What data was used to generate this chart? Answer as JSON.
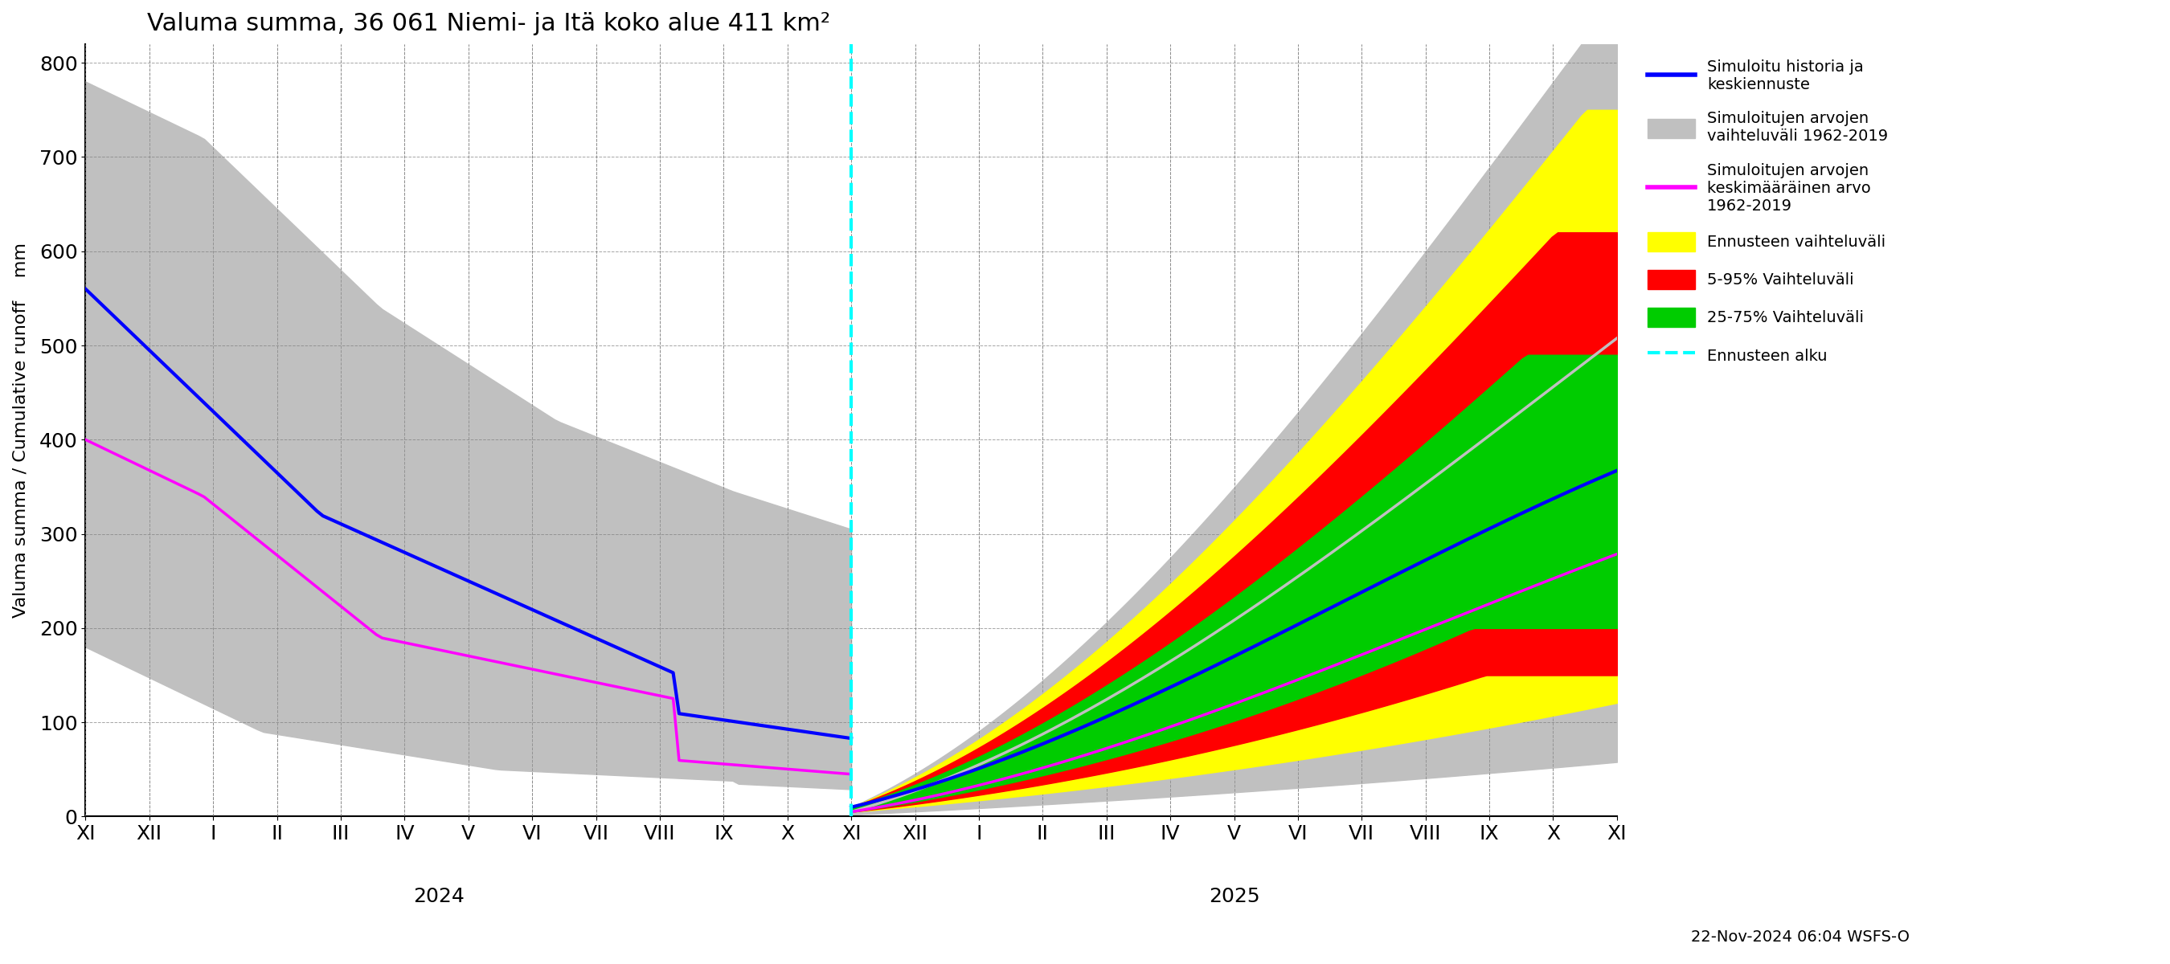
{
  "title": "Valuma summa, 36 061 Niemi- ja Itä koko alue 411 km²",
  "ylabel": "Valuma summa / Cumulative runoff    mm",
  "ylim": [
    0,
    820
  ],
  "yticks": [
    0,
    100,
    200,
    300,
    400,
    500,
    600,
    700,
    800
  ],
  "footnote": "22-Nov-2024 06:04 WSFS-O",
  "vline_color": "#00ffff",
  "history_color": "#0000ff",
  "hist_band_color": "#c0c0c0",
  "clim_mean_color": "#ff00ff",
  "forecast_band_color": "#ffff00",
  "p595_color": "#ff0000",
  "p2575_color": "#00cc00",
  "legend_entries": [
    "Simuloitu historia ja\nkeskiennuste",
    "Simuloitujen arvojen\nvaihteluväli 1962-2019",
    "Simuloitujen arvojen\nkeskimääräinen arvo\n1962-2019",
    "Ennusteen vaihteluväli",
    "5-95% Vaihteluväli",
    "25-75% Vaihteluväli",
    "Ennusteen alku"
  ],
  "x_tick_labels_left": [
    "XI",
    "XII",
    "I",
    "II",
    "III",
    "IV",
    "V",
    "VI",
    "VII",
    "VIII",
    "IX",
    "X",
    "XI"
  ],
  "x_tick_labels_right": [
    "XII",
    "I",
    "II",
    "III",
    "IV",
    "V",
    "VI",
    "VII",
    "VIII",
    "IX",
    "X",
    "XI"
  ],
  "year_left": "2024",
  "year_right": "2025"
}
